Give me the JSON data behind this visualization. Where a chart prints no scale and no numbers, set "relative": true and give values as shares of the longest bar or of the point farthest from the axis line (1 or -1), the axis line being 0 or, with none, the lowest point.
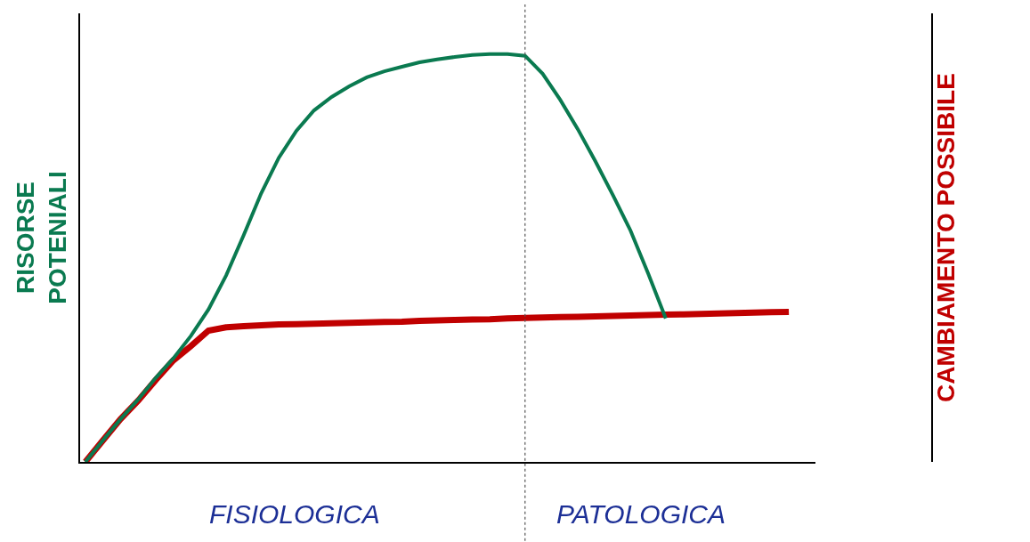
{
  "chart_data": {
    "type": "line",
    "relative": true,
    "ylabel": "RISORSE POTENIALI",
    "y2label": "CAMBIAMENTO POSSIBILE",
    "categories": [
      null,
      null,
      null,
      null,
      null,
      null,
      null,
      null,
      null,
      null,
      null,
      null,
      null,
      null,
      null,
      null,
      null,
      null,
      null,
      null,
      null,
      null,
      null,
      null,
      null,
      null,
      null,
      null,
      null,
      null,
      null,
      null,
      null,
      null,
      null,
      null,
      null,
      null,
      null,
      null,
      null
    ],
    "series": [
      {
        "color": "#0a7a50",
        "values": [
          0,
          0.053,
          0.105,
          0.153,
          0.206,
          0.254,
          0.309,
          0.374,
          0.457,
          0.556,
          0.659,
          0.746,
          0.812,
          0.862,
          0.895,
          0.921,
          0.943,
          0.958,
          0.969,
          0.98,
          0.987,
          0.993,
          0.998,
          1,
          1,
          0.996,
          0.952,
          0.888,
          0.816,
          0.737,
          0.654,
          0.567,
          0.462,
          0.352,
          null,
          null,
          null,
          null,
          null,
          null,
          null
        ]
      },
      {
        "color": "#c00000",
        "values": [
          0,
          0.053,
          0.105,
          0.15,
          0.201,
          0.249,
          0.284,
          0.322,
          0.33,
          0.333,
          0.335,
          0.337,
          0.338,
          0.339,
          0.34,
          0.341,
          0.342,
          0.343,
          0.344,
          0.346,
          0.347,
          0.348,
          0.349,
          0.35,
          0.352,
          0.353,
          0.354,
          0.355,
          0.356,
          0.357,
          0.358,
          0.359,
          0.36,
          0.361,
          0.362,
          0.363,
          0.364,
          0.365,
          0.366,
          0.367,
          0.368
        ]
      }
    ],
    "annotations": [
      "FISIOLOGICA",
      "PATOLOGICA"
    ],
    "tick_labels": false,
    "legend": false,
    "marker": "none",
    "line_style": "solid"
  }
}
